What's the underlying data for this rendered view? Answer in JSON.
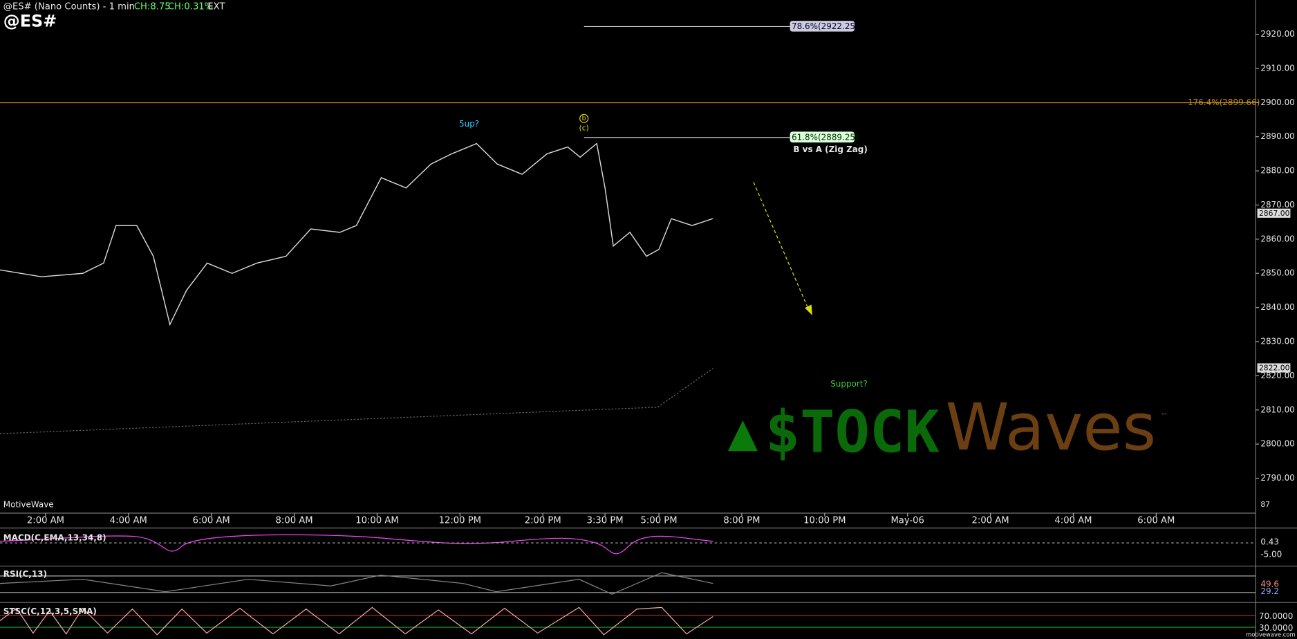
{
  "header": {
    "symbol": "@ES# (Nano Counts) - 1 min",
    "change": "CH:8.75",
    "change_pct": "CH:0.31%",
    "session": "EXT",
    "ticker": "@ES#"
  },
  "annotations": {
    "fib_786": "78.6%(2922.25)",
    "fib_1764": "176.4%(2899.66)",
    "fib_618": "61.8%(2889.25)",
    "zigzag": "B vs A (Zig Zag)",
    "five_up": "5up?",
    "wave_b": "b",
    "wave_c": "(c)",
    "support": "Support?",
    "watermark": "MotiveWave",
    "last_price": "2867.00",
    "level_price": "2822.00",
    "volume": "87"
  },
  "logo": {
    "stock": "$TOCK",
    "waves": "Waves",
    "tm": "™"
  },
  "indicators": [
    {
      "label": "MACD(C,EMA,13,34,8)",
      "levels": [
        "0.43",
        "-5.00"
      ]
    },
    {
      "label": "RSI(C,13)",
      "levels": [
        "49.6",
        "29.2"
      ]
    },
    {
      "label": "STSC(C,12,3,5,SMA)",
      "levels": [
        "70.0000",
        "30.0000"
      ]
    }
  ],
  "footer": "motivewave.com",
  "chart_data": {
    "type": "line",
    "x": [
      0.9,
      1.9,
      2.9,
      3.4,
      3.7,
      4.2,
      4.6,
      5.0,
      5.4,
      5.9,
      6.5,
      7.1,
      7.8,
      8.4,
      9.1,
      9.5,
      10.1,
      10.7,
      11.3,
      11.8,
      12.4,
      12.9,
      13.5,
      14.1,
      14.6,
      14.9,
      15.3,
      15.5,
      15.7,
      16.1,
      16.5,
      16.8,
      17.1,
      17.6,
      18.1
    ],
    "series": [
      {
        "color": "#d9d9d9",
        "values": [
          2851,
          2849,
          2850,
          2853,
          2864,
          2864,
          2855,
          2835,
          2845,
          2853,
          2850,
          2853,
          2855,
          2863,
          2862,
          2864,
          2878,
          2875,
          2882,
          2885,
          2888,
          2882,
          2879,
          2885,
          2887,
          2884,
          2888,
          2875,
          2858,
          2862,
          2855,
          2857,
          2866,
          2864,
          2866
        ]
      }
    ],
    "xlim": [
      0.9,
      31.2
    ],
    "xticks": [
      {
        "value": 2,
        "label": "2:00 AM"
      },
      {
        "value": 4,
        "label": "4:00 AM"
      },
      {
        "value": 6,
        "label": "6:00 AM"
      },
      {
        "value": 8,
        "label": "8:00 AM"
      },
      {
        "value": 10,
        "label": "10:00 AM"
      },
      {
        "value": 12,
        "label": "12:00 PM"
      },
      {
        "value": 14,
        "label": "2:00 PM"
      },
      {
        "value": 15.5,
        "label": "3:30 PM"
      },
      {
        "value": 16.8,
        "label": "5:00 PM"
      },
      {
        "value": 18.8,
        "label": "8:00 PM"
      },
      {
        "value": 20.8,
        "label": "10:00 PM"
      },
      {
        "value": 22.8,
        "label": "May-06"
      },
      {
        "value": 24.8,
        "label": "2:00 AM"
      },
      {
        "value": 26.8,
        "label": "4:00 AM"
      },
      {
        "value": 28.8,
        "label": "6:00 AM"
      }
    ],
    "ylim": [
      2781,
      2930
    ],
    "yticks": [
      {
        "value": 2790,
        "label": "2790.00"
      },
      {
        "value": 2800,
        "label": "2800.00"
      },
      {
        "value": 2810,
        "label": "2810.00"
      },
      {
        "value": 2820,
        "label": "2820.00"
      },
      {
        "value": 2830,
        "label": "2830.00"
      },
      {
        "value": 2840,
        "label": "2840.00"
      },
      {
        "value": 2850,
        "label": "2850.00"
      },
      {
        "value": 2860,
        "label": "2860.00"
      },
      {
        "value": 2870,
        "label": "2870.00"
      },
      {
        "value": 2880,
        "label": "2880.00"
      },
      {
        "value": 2890,
        "label": "2890.00"
      },
      {
        "value": 2900,
        "label": "2900.00"
      },
      {
        "value": 2910,
        "label": "2910.00"
      },
      {
        "value": 2920,
        "label": "2920.00"
      }
    ]
  }
}
